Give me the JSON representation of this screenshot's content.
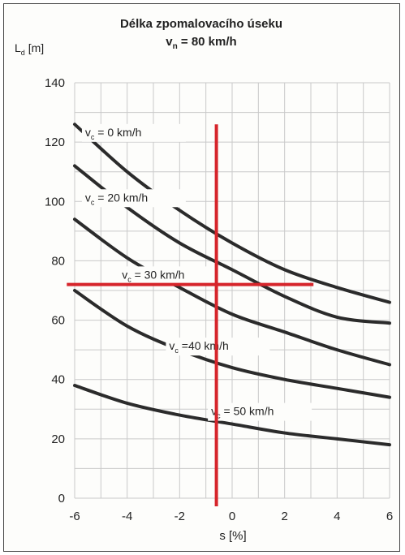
{
  "chart_data": {
    "type": "line",
    "title": "Délka zpomalovacího úseku",
    "subtitle_main": "v",
    "subtitle_sub": "n",
    "subtitle_rest": " = 80 km/h",
    "ylabel_main": "L",
    "ylabel_sub": "d",
    "ylabel_unit": " [m]",
    "xlabel": "s [%]",
    "xlim": [
      -6,
      6
    ],
    "ylim": [
      0,
      140
    ],
    "xticks": [
      -6,
      -4,
      -2,
      0,
      2,
      4,
      6
    ],
    "yticks": [
      0,
      20,
      40,
      60,
      80,
      100,
      120,
      140
    ],
    "grid": true,
    "series": [
      {
        "name_main": "v",
        "name_sub": "c",
        "name_rest": " = 0 km/h",
        "x": [
          -6,
          -4,
          -2,
          0,
          2,
          4,
          6
        ],
        "y": [
          126,
          110,
          97,
          86,
          77,
          71,
          66
        ]
      },
      {
        "name_main": "v",
        "name_sub": "c",
        "name_rest": " = 20 km/h",
        "x": [
          -6,
          -4,
          -2,
          0,
          2,
          4,
          6
        ],
        "y": [
          112,
          98,
          86,
          77,
          68,
          61,
          59
        ]
      },
      {
        "name_main": "v",
        "name_sub": "c",
        "name_rest": " = 30 km/h",
        "x": [
          -6,
          -4,
          -2,
          0,
          2,
          4,
          6
        ],
        "y": [
          94,
          81,
          71,
          62,
          56,
          50,
          45
        ]
      },
      {
        "name_main": "v",
        "name_sub": "c",
        "name_rest": " =40 km/h",
        "x": [
          -6,
          -4,
          -2,
          0,
          2,
          4,
          6
        ],
        "y": [
          70,
          58,
          50,
          44,
          40,
          37,
          34
        ]
      },
      {
        "name_main": "v",
        "name_sub": "c",
        "name_rest": " = 50 km/h",
        "x": [
          -6,
          -4,
          -2,
          0,
          2,
          4,
          6
        ],
        "y": [
          38,
          32,
          28,
          25,
          22,
          20,
          18
        ]
      }
    ],
    "reference_lines": {
      "vertical_x": -0.6,
      "vertical_y_range": [
        0,
        126
      ],
      "horizontal_y": 72,
      "horizontal_x_range": [
        -6.3,
        3.1
      ],
      "color": "#d6252b"
    }
  }
}
